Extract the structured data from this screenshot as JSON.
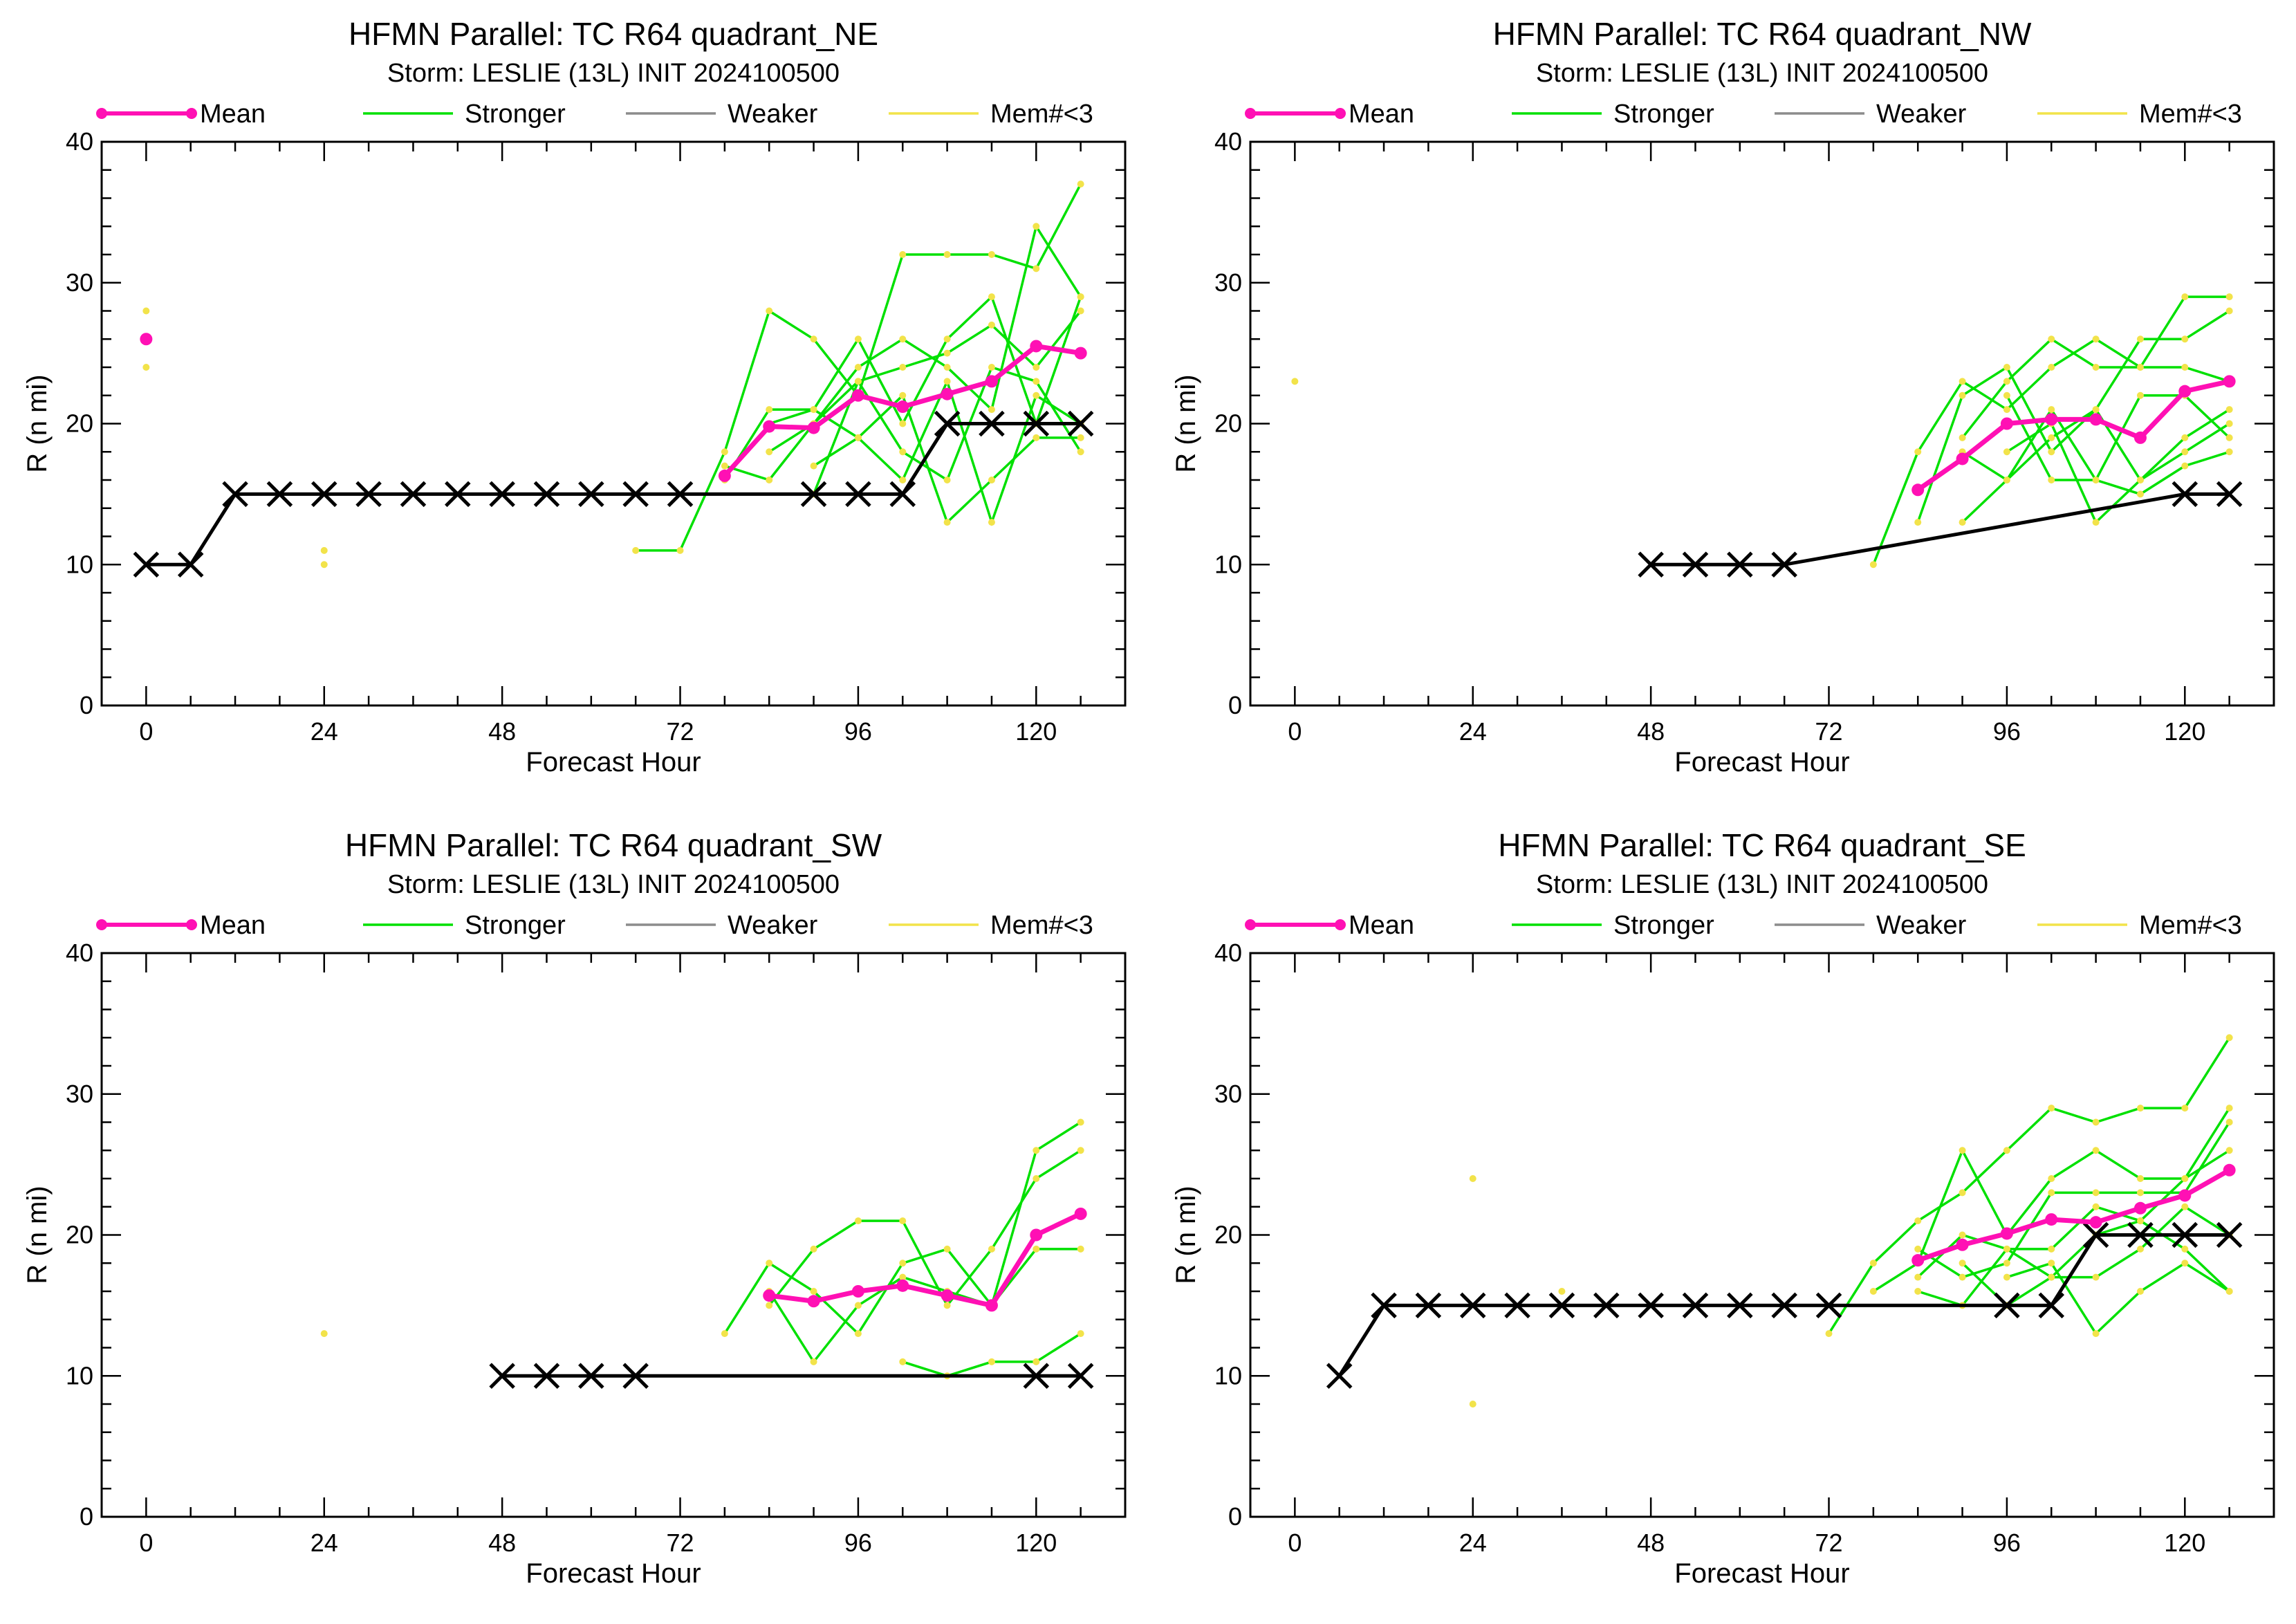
{
  "colors": {
    "mean": "#ff10b4",
    "stronger": "#00e000",
    "weaker": "#8c8c8c",
    "few_members": "#f2e34a",
    "official": "#000000"
  },
  "legend": {
    "mean": "Mean",
    "stronger": "Stronger",
    "weaker": "Weaker",
    "few_members": "Mem#<3"
  },
  "chart_data": [
    {
      "type": "line",
      "title": "HFMN Parallel: TC  R64 quadrant_NE",
      "subtitle": "Storm: LESLIE (13L) INIT 2024100500",
      "xlabel": "Forecast Hour",
      "ylabel": "R (n mi)",
      "xlim": [
        -6,
        132
      ],
      "ylim": [
        0,
        40
      ],
      "xticks": [
        0,
        24,
        48,
        72,
        96,
        120
      ],
      "yticks": [
        0,
        10,
        20,
        30,
        40
      ],
      "x_shown": [
        0,
        6,
        12,
        18,
        24,
        30,
        36,
        42,
        48,
        54,
        60,
        66,
        72,
        78,
        84,
        90,
        96,
        102,
        108,
        114,
        120,
        126
      ],
      "official": [
        10,
        10,
        15,
        15,
        15,
        15,
        15,
        15,
        15,
        15,
        15,
        15,
        15,
        null,
        null,
        15,
        15,
        15,
        20,
        20,
        20,
        20
      ],
      "mean": [
        26,
        null,
        null,
        null,
        null,
        null,
        null,
        null,
        null,
        null,
        null,
        null,
        null,
        16.3,
        19.8,
        19.7,
        22,
        21.2,
        22.1,
        23,
        25.5,
        25
      ],
      "members": [
        [
          28,
          null,
          null,
          null,
          11,
          null,
          null,
          null,
          null,
          null,
          null,
          11,
          11,
          18,
          28,
          26,
          22,
          32,
          32,
          32,
          31,
          37
        ],
        [
          24,
          null,
          null,
          null,
          10,
          null,
          null,
          null,
          null,
          null,
          null,
          null,
          null,
          16,
          21,
          21,
          26,
          20,
          26,
          29,
          20,
          29
        ],
        [
          null,
          null,
          null,
          null,
          null,
          null,
          null,
          null,
          null,
          null,
          null,
          null,
          null,
          17,
          16,
          20,
          24,
          26,
          24,
          21,
          34,
          29
        ],
        [
          null,
          null,
          null,
          null,
          null,
          null,
          null,
          null,
          null,
          null,
          null,
          null,
          null,
          null,
          18,
          20,
          23,
          24,
          25,
          27,
          24,
          28
        ],
        [
          null,
          null,
          null,
          null,
          null,
          null,
          null,
          null,
          null,
          null,
          null,
          null,
          null,
          null,
          20,
          21,
          19,
          22,
          13,
          16,
          19,
          19
        ],
        [
          null,
          null,
          null,
          null,
          null,
          null,
          null,
          null,
          null,
          null,
          null,
          null,
          null,
          null,
          null,
          15,
          23,
          18,
          16,
          24,
          23,
          18
        ],
        [
          null,
          null,
          null,
          null,
          null,
          null,
          null,
          null,
          null,
          null,
          null,
          null,
          null,
          null,
          null,
          17,
          19,
          16,
          23,
          13,
          22,
          20
        ]
      ]
    },
    {
      "type": "line",
      "title": "HFMN Parallel: TC  R64 quadrant_NW",
      "subtitle": "Storm: LESLIE (13L) INIT 2024100500",
      "xlabel": "Forecast Hour",
      "ylabel": "R (n mi)",
      "xlim": [
        -6,
        132
      ],
      "ylim": [
        0,
        40
      ],
      "xticks": [
        0,
        24,
        48,
        72,
        96,
        120
      ],
      "yticks": [
        0,
        10,
        20,
        30,
        40
      ],
      "x_shown": [
        0,
        6,
        12,
        18,
        24,
        30,
        36,
        42,
        48,
        54,
        60,
        66,
        72,
        78,
        84,
        90,
        96,
        102,
        108,
        114,
        120,
        126
      ],
      "official": [
        null,
        null,
        null,
        null,
        null,
        null,
        null,
        null,
        10,
        10,
        10,
        10,
        null,
        null,
        null,
        null,
        null,
        null,
        null,
        null,
        15,
        15
      ],
      "mean": [
        null,
        null,
        null,
        null,
        null,
        null,
        null,
        null,
        null,
        null,
        null,
        null,
        null,
        null,
        15.3,
        17.5,
        20,
        20.3,
        20.3,
        19,
        22.3,
        23
      ],
      "members": [
        [
          23,
          null,
          null,
          null,
          null,
          null,
          null,
          null,
          null,
          null,
          null,
          null,
          null,
          10,
          18,
          23,
          21,
          24,
          26,
          24,
          29,
          29
        ],
        [
          null,
          null,
          null,
          null,
          null,
          null,
          null,
          null,
          null,
          null,
          null,
          null,
          null,
          null,
          13,
          22,
          24,
          18,
          21,
          26,
          26,
          28
        ],
        [
          null,
          null,
          null,
          null,
          null,
          null,
          null,
          null,
          null,
          null,
          null,
          null,
          null,
          null,
          null,
          19,
          23,
          26,
          24,
          24,
          24,
          23
        ],
        [
          null,
          null,
          null,
          null,
          null,
          null,
          null,
          null,
          null,
          null,
          null,
          null,
          null,
          null,
          null,
          13,
          16,
          19,
          21,
          16,
          19,
          21
        ],
        [
          null,
          null,
          null,
          null,
          null,
          null,
          null,
          null,
          null,
          null,
          null,
          null,
          null,
          null,
          null,
          18,
          16,
          21,
          16,
          15,
          17,
          18
        ],
        [
          null,
          null,
          null,
          null,
          null,
          null,
          null,
          null,
          null,
          null,
          null,
          null,
          null,
          null,
          null,
          null,
          22,
          16,
          16,
          22,
          22,
          19
        ],
        [
          null,
          null,
          null,
          null,
          null,
          null,
          null,
          null,
          null,
          null,
          null,
          null,
          null,
          null,
          null,
          null,
          18,
          20,
          13,
          16,
          18,
          20
        ]
      ]
    },
    {
      "type": "line",
      "title": "HFMN Parallel: TC  R64 quadrant_SW",
      "subtitle": "Storm: LESLIE (13L) INIT 2024100500",
      "xlabel": "Forecast Hour",
      "ylabel": "R (n mi)",
      "xlim": [
        -6,
        132
      ],
      "ylim": [
        0,
        40
      ],
      "xticks": [
        0,
        24,
        48,
        72,
        96,
        120
      ],
      "yticks": [
        0,
        10,
        20,
        30,
        40
      ],
      "x_shown": [
        0,
        6,
        12,
        18,
        24,
        30,
        36,
        42,
        48,
        54,
        60,
        66,
        72,
        78,
        84,
        90,
        96,
        102,
        108,
        114,
        120,
        126
      ],
      "official": [
        null,
        null,
        null,
        null,
        null,
        null,
        null,
        null,
        10,
        10,
        10,
        10,
        null,
        null,
        null,
        null,
        null,
        null,
        null,
        null,
        10,
        10
      ],
      "mean": [
        null,
        null,
        null,
        null,
        null,
        null,
        null,
        null,
        null,
        null,
        null,
        null,
        null,
        null,
        15.7,
        15.3,
        16,
        16.4,
        15.7,
        15,
        20,
        21.5
      ],
      "members": [
        [
          null,
          null,
          null,
          null,
          13,
          null,
          null,
          null,
          null,
          null,
          null,
          null,
          null,
          13,
          18,
          16,
          13,
          18,
          19,
          15,
          26,
          28
        ],
        [
          null,
          null,
          null,
          null,
          null,
          null,
          null,
          null,
          null,
          null,
          null,
          null,
          null,
          null,
          15,
          19,
          21,
          21,
          15,
          19,
          24,
          26
        ],
        [
          null,
          null,
          null,
          null,
          null,
          null,
          null,
          null,
          null,
          null,
          null,
          null,
          null,
          null,
          16,
          11,
          15,
          17,
          16,
          15,
          19,
          19
        ],
        [
          null,
          null,
          null,
          null,
          null,
          null,
          null,
          null,
          null,
          null,
          null,
          null,
          null,
          null,
          null,
          null,
          null,
          11,
          10,
          11,
          11,
          13
        ]
      ]
    },
    {
      "type": "line",
      "title": "HFMN Parallel: TC  R64 quadrant_SE",
      "subtitle": "Storm: LESLIE (13L) INIT 2024100500",
      "xlabel": "Forecast Hour",
      "ylabel": "R (n mi)",
      "xlim": [
        -6,
        132
      ],
      "ylim": [
        0,
        40
      ],
      "xticks": [
        0,
        24,
        48,
        72,
        96,
        120
      ],
      "yticks": [
        0,
        10,
        20,
        30,
        40
      ],
      "x_shown": [
        0,
        6,
        12,
        18,
        24,
        30,
        36,
        42,
        48,
        54,
        60,
        66,
        72,
        78,
        84,
        90,
        96,
        102,
        108,
        114,
        120,
        126
      ],
      "official": [
        null,
        10,
        15,
        15,
        15,
        15,
        15,
        15,
        15,
        15,
        15,
        15,
        15,
        null,
        null,
        null,
        15,
        15,
        20,
        20,
        20,
        20
      ],
      "mean": [
        null,
        null,
        null,
        null,
        null,
        null,
        null,
        null,
        null,
        null,
        null,
        null,
        null,
        null,
        18.2,
        19.3,
        20.1,
        21.1,
        20.9,
        21.9,
        22.8,
        24.6
      ],
      "members": [
        [
          null,
          null,
          null,
          null,
          24,
          null,
          16,
          null,
          null,
          null,
          null,
          null,
          13,
          18,
          21,
          23,
          26,
          29,
          28,
          29,
          29,
          34
        ],
        [
          null,
          null,
          null,
          null,
          8,
          null,
          null,
          null,
          null,
          null,
          null,
          null,
          null,
          16,
          18,
          26,
          20,
          24,
          26,
          24,
          24,
          29
        ],
        [
          null,
          null,
          null,
          null,
          null,
          null,
          null,
          null,
          null,
          null,
          null,
          null,
          null,
          null,
          19,
          17,
          18,
          23,
          23,
          23,
          23,
          28
        ],
        [
          null,
          null,
          null,
          null,
          null,
          null,
          null,
          null,
          null,
          null,
          null,
          null,
          null,
          null,
          17,
          20,
          19,
          19,
          22,
          21,
          24,
          26
        ],
        [
          null,
          null,
          null,
          null,
          null,
          null,
          null,
          null,
          null,
          null,
          null,
          null,
          null,
          null,
          16,
          15,
          19,
          17,
          17,
          19,
          22,
          20
        ],
        [
          null,
          null,
          null,
          null,
          null,
          null,
          null,
          null,
          null,
          null,
          null,
          null,
          null,
          null,
          null,
          18,
          15,
          17,
          20,
          21,
          19,
          16
        ],
        [
          null,
          null,
          null,
          null,
          null,
          null,
          null,
          null,
          null,
          null,
          null,
          null,
          null,
          null,
          null,
          null,
          17,
          18,
          13,
          16,
          18,
          16
        ]
      ]
    }
  ]
}
